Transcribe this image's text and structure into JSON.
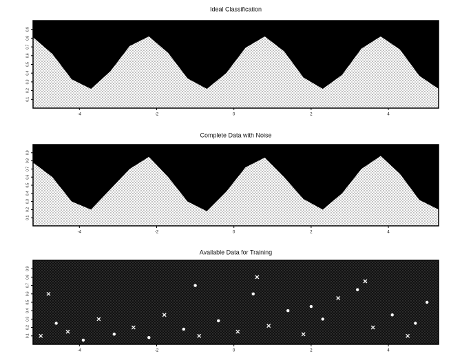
{
  "chart_data": [
    {
      "type": "area",
      "title": "Ideal Classification",
      "x": [
        -5.2,
        -4.7,
        -4.2,
        -3.7,
        -3.2,
        -2.7,
        -2.2,
        -1.7,
        -1.2,
        -0.7,
        -0.2,
        0.3,
        0.8,
        1.3,
        1.8,
        2.3,
        2.8,
        3.3,
        3.8,
        4.3,
        4.8,
        5.3
      ],
      "values": [
        0.81,
        0.62,
        0.33,
        0.22,
        0.42,
        0.71,
        0.82,
        0.63,
        0.34,
        0.22,
        0.4,
        0.69,
        0.82,
        0.65,
        0.35,
        0.22,
        0.38,
        0.68,
        0.82,
        0.67,
        0.37,
        0.22
      ],
      "xlim": [
        -5.2,
        5.3
      ],
      "ylim": [
        0,
        1
      ],
      "xticks": [
        -4,
        -2,
        0,
        2,
        4
      ],
      "yticks": [
        0.1,
        0.2,
        0.3,
        0.4,
        0.5,
        0.6,
        0.7,
        0.8,
        0.9
      ]
    },
    {
      "type": "area",
      "title": "Complete Data with Noise",
      "x": [
        -5.2,
        -4.7,
        -4.2,
        -3.7,
        -3.2,
        -2.7,
        -2.2,
        -1.7,
        -1.2,
        -0.7,
        -0.2,
        0.3,
        0.8,
        1.3,
        1.8,
        2.3,
        2.8,
        3.3,
        3.8,
        4.3,
        4.8,
        5.3
      ],
      "values": [
        0.78,
        0.6,
        0.3,
        0.2,
        0.45,
        0.7,
        0.85,
        0.6,
        0.3,
        0.18,
        0.42,
        0.72,
        0.84,
        0.6,
        0.33,
        0.2,
        0.4,
        0.7,
        0.86,
        0.64,
        0.32,
        0.2
      ],
      "xlim": [
        -5.2,
        5.3
      ],
      "ylim": [
        0,
        1
      ],
      "xticks": [
        -4,
        -2,
        0,
        2,
        4
      ],
      "yticks": [
        0.1,
        0.2,
        0.3,
        0.4,
        0.5,
        0.6,
        0.7,
        0.8,
        0.9
      ]
    },
    {
      "type": "scatter",
      "title": "Available Data for Training",
      "x": [
        -5.0,
        -4.6,
        -4.3,
        -3.9,
        -3.5,
        -3.1,
        -2.6,
        -2.2,
        -1.8,
        -1.3,
        -0.9,
        -0.4,
        0.1,
        0.5,
        0.9,
        1.4,
        1.8,
        2.3,
        2.7,
        3.2,
        3.6,
        4.1,
        4.5,
        5.0,
        -4.8,
        -1.0,
        0.6,
        2.0,
        3.4,
        4.7
      ],
      "values": [
        0.1,
        0.25,
        0.15,
        0.05,
        0.3,
        0.12,
        0.2,
        0.08,
        0.35,
        0.18,
        0.1,
        0.28,
        0.15,
        0.6,
        0.22,
        0.4,
        0.12,
        0.3,
        0.55,
        0.65,
        0.2,
        0.35,
        0.1,
        0.5,
        0.6,
        0.7,
        0.8,
        0.45,
        0.75,
        0.25
      ],
      "xlim": [
        -5.2,
        5.3
      ],
      "ylim": [
        0,
        1
      ],
      "xticks": [
        -4,
        -2,
        0,
        2,
        4
      ],
      "yticks": [
        0.1,
        0.2,
        0.3,
        0.4,
        0.5,
        0.6,
        0.7,
        0.8,
        0.9
      ]
    }
  ]
}
